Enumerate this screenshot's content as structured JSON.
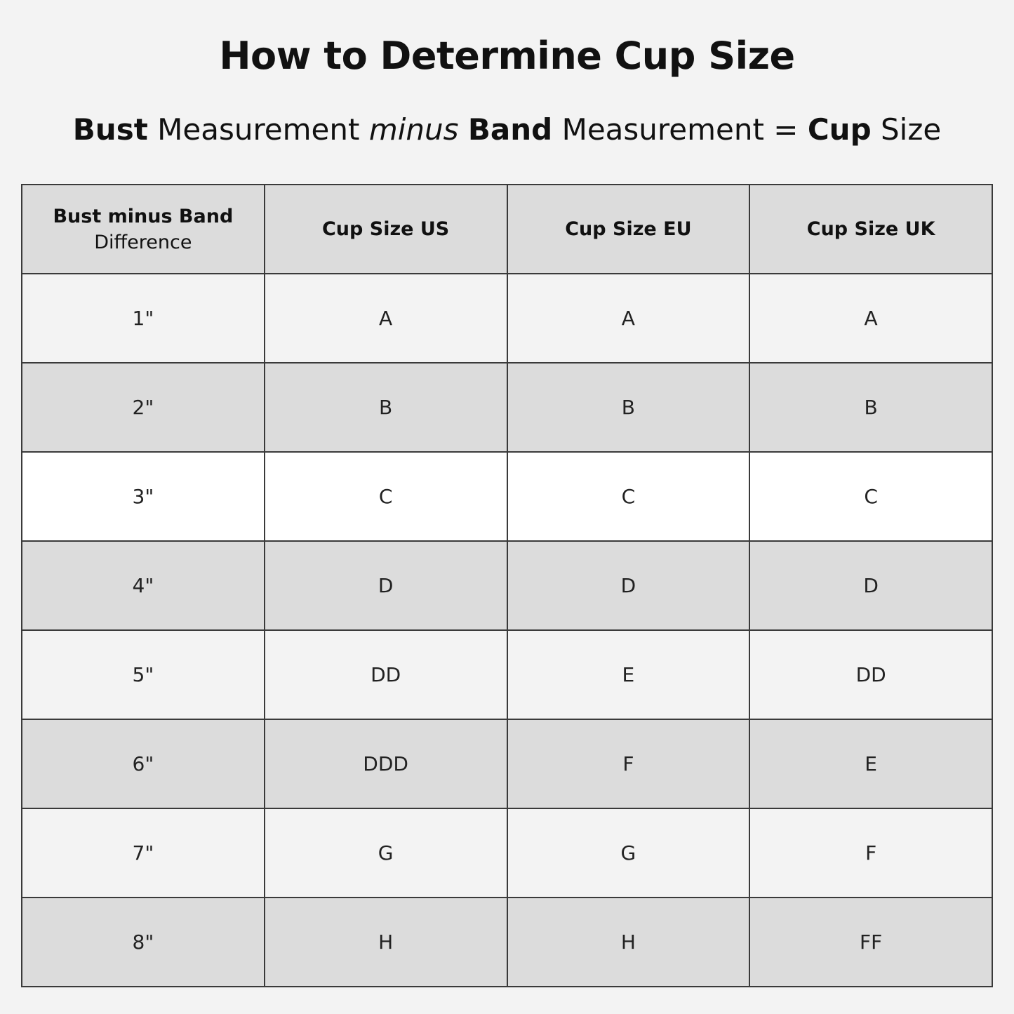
{
  "title": "How to Determine Cup Size",
  "formula": {
    "part1_bold": "Bust",
    "part2": "Measurement",
    "part3_italic": "minus",
    "part4_bold": "Band",
    "part5": "Measurement =",
    "part6_bold": "Cup",
    "part7": "Size"
  },
  "table": {
    "headers": [
      {
        "main": "Bust minus Band",
        "sub": "Difference"
      },
      {
        "main": "Cup Size US"
      },
      {
        "main": "Cup Size EU"
      },
      {
        "main": "Cup Size UK"
      }
    ],
    "rows": [
      [
        "1\"",
        "A",
        "A",
        "A"
      ],
      [
        "2\"",
        "B",
        "B",
        "B"
      ],
      [
        "3\"",
        "C",
        "C",
        "C"
      ],
      [
        "4\"",
        "D",
        "D",
        "D"
      ],
      [
        "5\"",
        "DD",
        "E",
        "DD"
      ],
      [
        "6\"",
        "DDD",
        "F",
        "E"
      ],
      [
        "7\"",
        "G",
        "G",
        "F"
      ],
      [
        "8\"",
        "H",
        "H",
        "FF"
      ]
    ]
  },
  "colors": {
    "page": "#f3f3f3",
    "header": "#dcdcdc",
    "border": "#3a3a3a",
    "highlight_row": "#ffffff"
  }
}
